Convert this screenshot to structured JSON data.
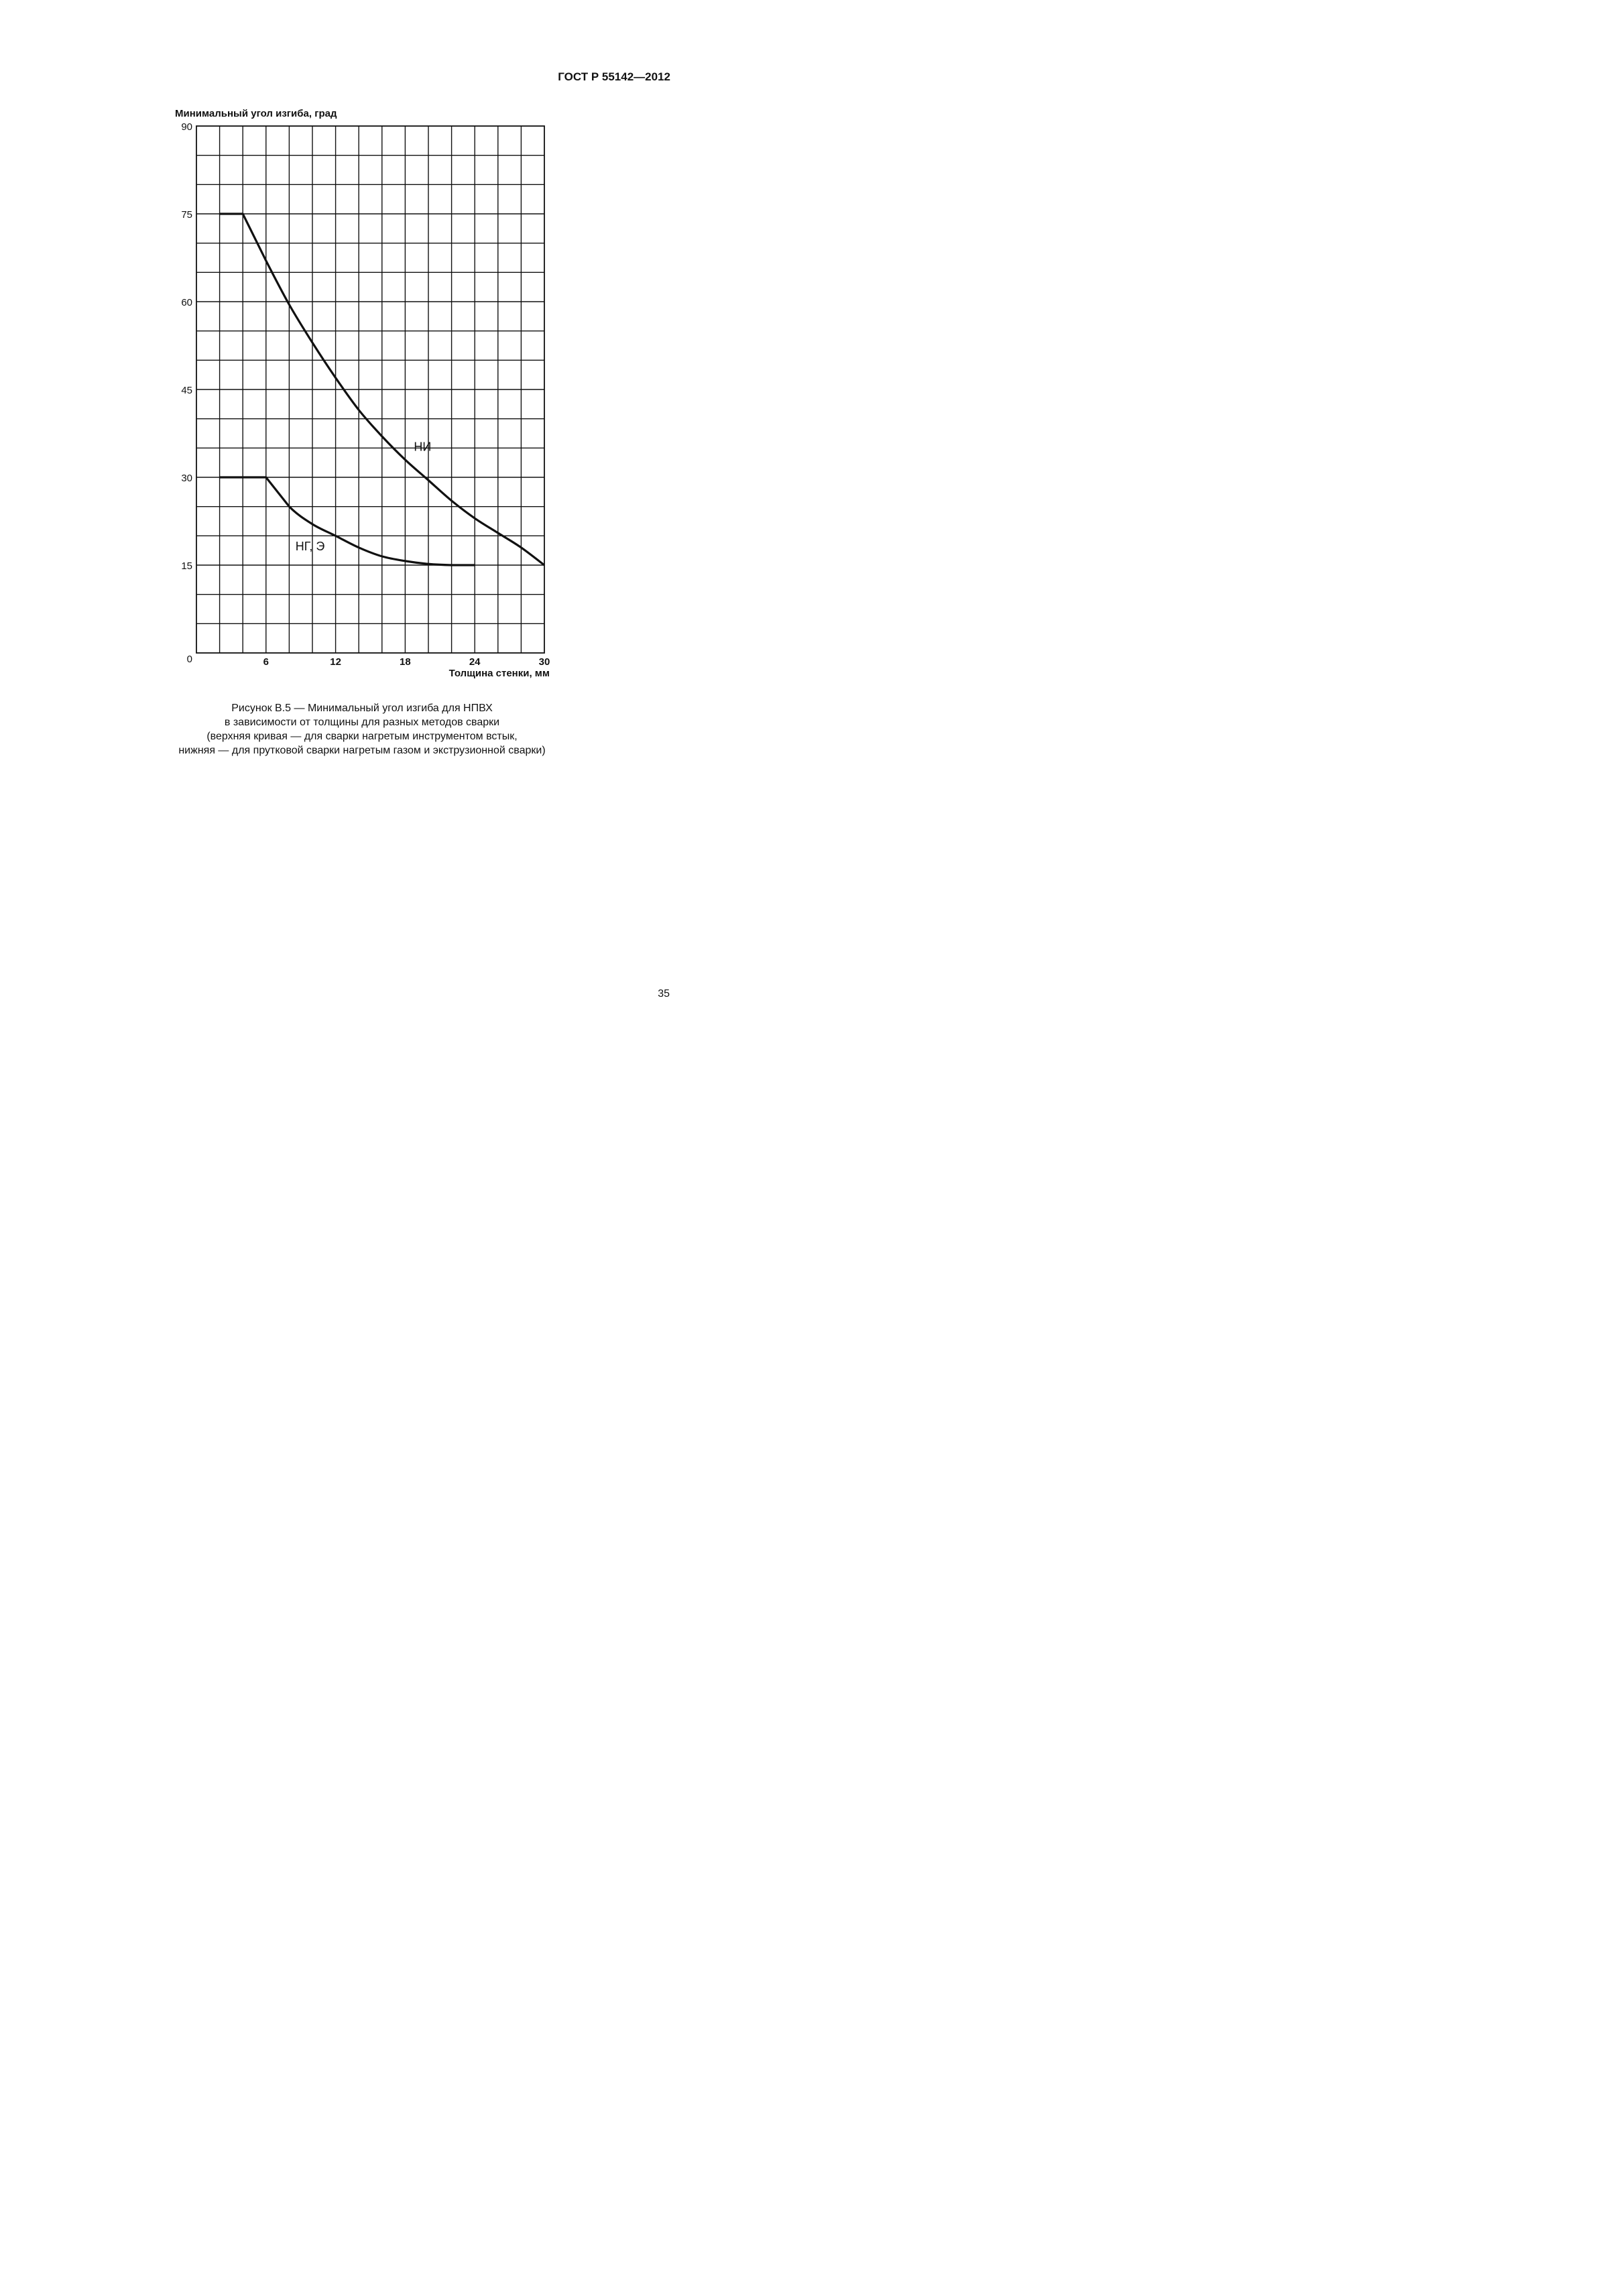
{
  "document": {
    "header": "ГОСТ Р 55142—2012",
    "page_number": "35",
    "caption": [
      "Рисунок В.5 — Минимальный угол изгиба для НПВХ",
      "в зависимости от толщины для разных методов сварки",
      "(верхняя кривая — для сварки нагретым инструментом встык,",
      "нижняя — для прутковой сварки нагретым газом и экструзионной сварки)"
    ]
  },
  "chart_data": {
    "type": "line",
    "title": "",
    "ylabel": "Минимальный угол изгиба, град",
    "xlabel": "Толщина стенки, мм",
    "xlim": [
      0,
      30
    ],
    "ylim": [
      0,
      90
    ],
    "x_ticks": [
      6,
      12,
      18,
      24,
      30
    ],
    "y_ticks": [
      0,
      15,
      30,
      45,
      60,
      75,
      90
    ],
    "grid": true,
    "grid_step": {
      "x": 2,
      "y": 5
    },
    "series": [
      {
        "name": "НИ",
        "x": [
          2,
          4,
          6,
          8,
          10,
          12,
          14,
          16,
          18,
          20,
          22,
          24,
          26,
          28,
          30
        ],
        "y": [
          75,
          75,
          67,
          59.5,
          53,
          47,
          41.5,
          37,
          33,
          29.5,
          26,
          23,
          20.5,
          18,
          15
        ]
      },
      {
        "name": "НГ, Э",
        "x": [
          2,
          4,
          6,
          8,
          10,
          12,
          14,
          16,
          18,
          20,
          22,
          24
        ],
        "y": [
          30,
          30,
          30,
          25,
          22,
          20,
          18,
          16.5,
          15.7,
          15.2,
          15,
          15
        ]
      }
    ]
  }
}
